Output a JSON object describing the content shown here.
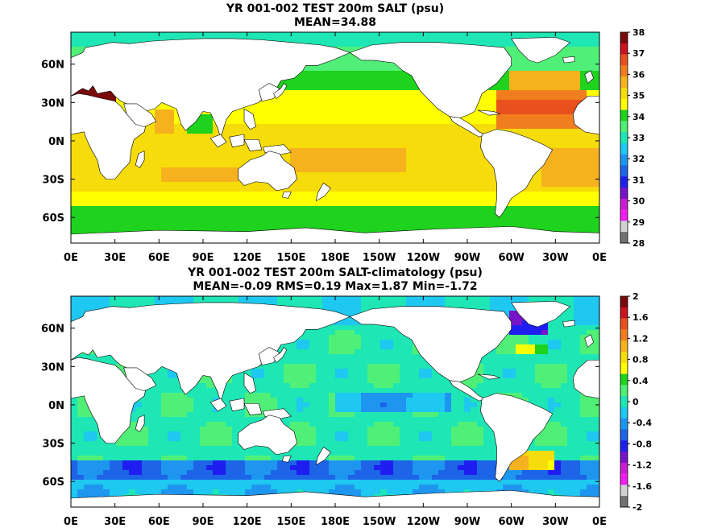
{
  "colors": {
    "land": "#ffffff",
    "coast": "#000000",
    "frame": "#000000"
  },
  "chart_data": [
    {
      "type": "heatmap",
      "title": "YR 001-002 TEST 200m SALT (psu)",
      "subtitle": "MEAN=34.88",
      "xlabel": "",
      "ylabel": "",
      "x_ticks": [
        "0E",
        "30E",
        "60E",
        "90E",
        "120E",
        "150E",
        "180E",
        "150W",
        "120W",
        "90W",
        "60W",
        "30W",
        "0E"
      ],
      "y_ticks": [
        "60N",
        "30N",
        "0N",
        "30S",
        "60S"
      ],
      "y_tick_values": [
        60,
        30,
        0,
        -30,
        -60
      ],
      "lat_range": [
        -80,
        85
      ],
      "colorbar": {
        "ticks": [
          "38",
          "37",
          "36",
          "35",
          "34",
          "33",
          "32",
          "31",
          "30",
          "29",
          "28"
        ],
        "colors": [
          "#7a0a0a",
          "#c8141e",
          "#e8501e",
          "#f07e1e",
          "#f5b21e",
          "#f5dc0a",
          "#ffff00",
          "#1ed21e",
          "#50f078",
          "#1ee6b4",
          "#1ec8f0",
          "#1e96f0",
          "#1e64e6",
          "#1e1ef0",
          "#7814c8",
          "#c81ed2",
          "#f01ef0",
          "#d2d2d2",
          "#707070"
        ]
      },
      "value_range": [
        28,
        38
      ],
      "grid": false
    },
    {
      "type": "heatmap",
      "title": "YR 001-002 TEST 200m SALT-climatology (psu)",
      "subtitle": "MEAN=-0.09   RMS=0.19   Max=1.87   Min=-1.72",
      "xlabel": "",
      "ylabel": "",
      "x_ticks": [
        "0E",
        "30E",
        "60E",
        "90E",
        "120E",
        "150E",
        "180E",
        "150W",
        "120W",
        "90W",
        "60W",
        "30W",
        "0E"
      ],
      "y_ticks": [
        "60N",
        "30N",
        "0N",
        "30S",
        "60S"
      ],
      "y_tick_values": [
        60,
        30,
        0,
        -30,
        -60
      ],
      "lat_range": [
        -80,
        85
      ],
      "colorbar": {
        "ticks": [
          "2",
          "1.6",
          "1.2",
          "0.8",
          "0.4",
          "0",
          "-0.4",
          "-0.8",
          "-1.2",
          "-1.6",
          "-2"
        ],
        "colors": [
          "#7a0a0a",
          "#c8141e",
          "#e8501e",
          "#f07e1e",
          "#f5b21e",
          "#f5dc0a",
          "#ffff00",
          "#1ed21e",
          "#50f078",
          "#1ee6b4",
          "#1ec8f0",
          "#1e96f0",
          "#1e64e6",
          "#1e1ef0",
          "#7814c8",
          "#c81ed2",
          "#f01ef0",
          "#d2d2d2",
          "#707070"
        ]
      },
      "value_range": [
        -2,
        2
      ],
      "grid": false
    }
  ]
}
